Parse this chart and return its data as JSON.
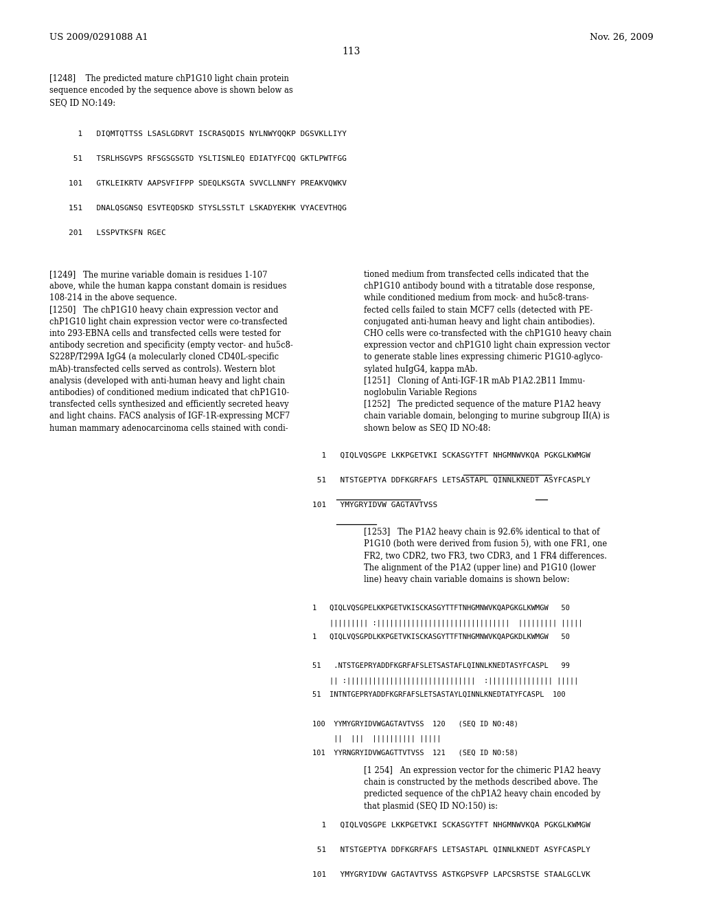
{
  "bg": "#ffffff",
  "header_left": "US 2009/0291088 A1",
  "header_right": "Nov. 26, 2009",
  "page_num": "113",
  "para1248": "[1248]    The predicted mature chP1G10 light chain protein\nsequence encoded by the sequence above is shown below as\nSEQ ID NO:149:",
  "seq1": [
    "  1   DIQMTQTTSS LSASLGDRVT ISCRASQDIS NYLNWYQQKP DGSVKLLIYY",
    " 51   TSRLHSGVPS RFSGSGSGTD YSLTISNLEQ EDIATYFCQQ GKTLPWTFGG",
    "101   GTKLEIKRTV AAPSVFIFPP SDEQLKSGTA SVVCLLNNFY PREAKVQWKV",
    "151   DNALQSGNSQ ESVTEQDSKD STYSLSSTLT LSKADYEKHK VYACEVTHQG",
    "201   LSSPVTKSFN RGEC"
  ],
  "col1_para": "[1249]   The murine variable domain is residues 1-107\nabove, while the human kappa constant domain is residues\n108-214 in the above sequence.\n[1250]   The chP1G10 heavy chain expression vector and\nchP1G10 light chain expression vector were co-transfected\ninto 293-EBNA cells and transfected cells were tested for\nantibody secretion and specificity (empty vector- and hu5c8-\nS228P/T299A IgG4 (a molecularly cloned CD40L-specific\nmAb)-transfected cells served as controls). Western blot\nanalysis (developed with anti-human heavy and light chain\nantibodies) of conditioned medium indicated that chP1G10-\ntransfected cells synthesized and efficiently secreted heavy\nand light chains. FACS analysis of IGF-1R-expressing MCF7\nhuman mammary adenocarcinoma cells stained with condi-",
  "col2_para": "tioned medium from transfected cells indicated that the\nchP1G10 antibody bound with a titratable dose response,\nwhile conditioned medium from mock- and hu5c8-trans-\nfected cells failed to stain MCF7 cells (detected with PE-\nconjugated anti-human heavy and light chain antibodies).\nCHO cells were co-transfected with the chP1G10 heavy chain\nexpression vector and chP1G10 light chain expression vector\nto generate stable lines expressing chimeric P1G10-aglyco-\nsylated huIgG4, kappa mAb.\n[1251]   Cloning of Anti-IGF-1R mAb P1A2.2B11 Immu-\nnoglobulin Variable Regions\n[1252]   The predicted sequence of the mature P1A2 heavy\nchain variable domain, belonging to murine subgroup II(A) is\nshown below as SEQ ID NO:48:",
  "seq2_lines": [
    "  1   QIQLVQSGPE LKKPGETVKI SCKASGYTFT NHGMNWVKQA PGKGLKWMGW",
    " 51   NTSTGEPTYA DDFKGRFAFS LETSASTAPL QINNLKNEDT ASYFCASPLY",
    "101   YMYGRYIDVW GAGTAVTVSS"
  ],
  "para1253": "[1253]   The P1A2 heavy chain is 92.6% identical to that of\nP1G10 (both were derived from fusion 5), with one FR1, one\nFR2, two CDR2, two FR3, two CDR3, and 1 FR4 differences.\nThe alignment of the P1A2 (upper line) and P1G10 (lower\nline) heavy chain variable domains is shown below:",
  "align_lines": [
    "1   QIQLVQSGPELKKPGETVKISCKASGYTTFTNHGMNWVKQAPGKGLKWMGW   50",
    "    ||||||||| :|||||||||||||||||||||||||||||||  ||||||||| |||||",
    "1   QIQLVQSGPDLKKPGETVKISCKASGYTTFTNHGMNWVKQAPGKDLKWMGW   50",
    "",
    "51   .NTSTGEPRYADDFKGRFAFSLETSASTAFLQINNLKNEDTASYFCASPL   99",
    "    || :||||||||||||||||||||||||||||||  :||||||||||||||| |||||",
    "51  INTNTGEPRYADDFKGRFAFSLETSASTAYLQINNLKNEDTATYFCASPL  100",
    "",
    "100  YYMYGRYIDVWGAGTAVTVSS  120   (SEQ ID NO:48)",
    "     ||  |||  |||||||||| |||||",
    "101  YYRNGRYIDVWGAGTTVTVSS  121   (SEQ ID NO:58)"
  ],
  "para1254": "[1 254]   An expression vector for the chimeric P1A2 heavy\nchain is constructed by the methods described above. The\npredicted sequence of the chP1A2 heavy chain encoded by\nthat plasmid (SEQ ID NO:150) is:",
  "seq3_lines": [
    "  1   QIQLVQSGPE LKKPGETVKI SCKASGYTFT NHGMNWVKQA PGKGLKWMGW",
    " 51   NTSTGEPTYA DDFKGRFAFS LETSASTAPL QINNLKNEDT ASYFCASPLY",
    "101   YMYGRYIDVW GAGTAVTVSS ASTKGPSVFP LAPCSRSTSE STAALGCLVK"
  ]
}
